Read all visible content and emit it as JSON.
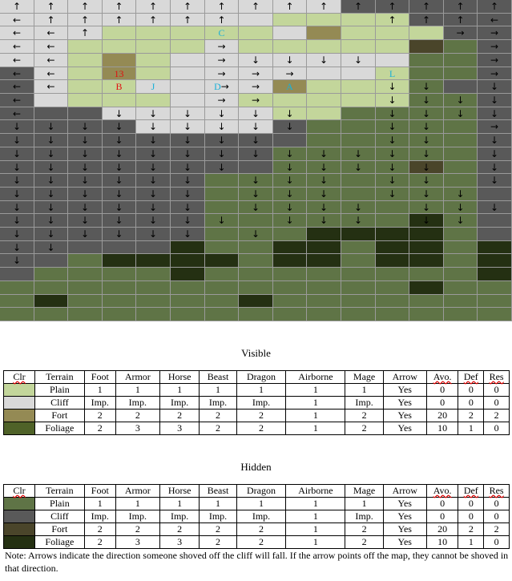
{
  "legend_titles": {
    "visible": "Visible",
    "hidden": "Hidden"
  },
  "legend_headers": [
    "Clr",
    "Terrain",
    "Foot",
    "Armor",
    "Horse",
    "Beast",
    "Dragon",
    "Airborne",
    "Mage",
    "Arrow",
    "Avo.",
    "Def",
    "Res"
  ],
  "visible_rows": [
    {
      "terrain": "Plain",
      "color": "#c3d69b",
      "values": [
        "1",
        "1",
        "1",
        "1",
        "1",
        "1",
        "1",
        "Yes",
        "0",
        "0",
        "0"
      ]
    },
    {
      "terrain": "Cliff",
      "color": "#d9d9d9",
      "values": [
        "Imp.",
        "Imp.",
        "Imp.",
        "Imp.",
        "Imp.",
        "1",
        "Imp.",
        "Yes",
        "0",
        "0",
        "0"
      ]
    },
    {
      "terrain": "Fort",
      "color": "#948a54",
      "values": [
        "2",
        "2",
        "2",
        "2",
        "2",
        "1",
        "2",
        "Yes",
        "20",
        "2",
        "2"
      ]
    },
    {
      "terrain": "Foliage",
      "color": "#4f6228",
      "values": [
        "2",
        "3",
        "3",
        "2",
        "2",
        "1",
        "2",
        "Yes",
        "10",
        "1",
        "0"
      ]
    }
  ],
  "hidden_rows": [
    {
      "terrain": "Plain",
      "color": "#5f7446",
      "values": [
        "1",
        "1",
        "1",
        "1",
        "1",
        "1",
        "1",
        "Yes",
        "0",
        "0",
        "0"
      ]
    },
    {
      "terrain": "Cliff",
      "color": "#595959",
      "values": [
        "Imp.",
        "Imp.",
        "Imp.",
        "Imp.",
        "Imp.",
        "1",
        "Imp.",
        "Yes",
        "0",
        "0",
        "0"
      ]
    },
    {
      "terrain": "Fort",
      "color": "#4a452a",
      "values": [
        "2",
        "2",
        "2",
        "2",
        "2",
        "1",
        "2",
        "Yes",
        "20",
        "2",
        "2"
      ]
    },
    {
      "terrain": "Foliage",
      "color": "#243012",
      "values": [
        "2",
        "3",
        "3",
        "2",
        "2",
        "1",
        "2",
        "Yes",
        "10",
        "1",
        "0"
      ]
    }
  ],
  "note": "Note: Arrows indicate the direction someone shoved off the cliff will fall. If the arrow points off the map, they cannot be shoved in that direction.",
  "map": {
    "terrain_key": {
      "p": "plain",
      "c": "cliff",
      "f": "fort",
      "o": "foliage",
      "P": "hidden-plain",
      "C": "hidden-cliff",
      "F": "hidden-fort",
      "O": "hidden-foliage"
    },
    "arrow_key": {
      "u": "↑",
      "d": "↓",
      "l": "←",
      "r": "→",
      ".": ""
    },
    "terrain": [
      "ccccccccccCCCCC",
      "ccccccccppppCCC",
      "cccpppppcfpppCC",
      "ccppppcpppppFPC",
      "ccpfpcccccccPPC",
      "CcpfpccccccpPPC",
      "CcppccccfpppPCC",
      "CcpppccpppppPPC",
      "CCCcccccppPPPPC",
      "CCCCccccCPPPPPC",
      "CCCCCCCCCPPPPPC",
      "CCCCCCCCPPPPPPC",
      "CCCCCCCCPPPPFPC",
      "CCCCCCPPPPPPPPC",
      "CCCCCCPPPPPPPPC",
      "CCCCCCPPPPPPPPC",
      "CCCCCCPPPPPPOPC",
      "CCCCCCPPPOOOOPC",
      "CCCCCOPPOOPOOPO",
      "CCPOOOOPOOPOOPO",
      "CPPPPOPPPPPPPPO",
      "PPPPPPPPPPPPOPP",
      "POPPPPPOPPPPPPP",
      "PPPPPPPPPPPPPPP"
    ],
    "arrows": [
      "uuuuuuuuuuuuuuu",
      "luuuuuu....uuul",
      "llu..........rr",
      "ll....r.......r",
      "ll....rdddd...r",
      "ll....rrr.....r",
      "ll....rr...dd.d",
      "l.....rr...dddd",
      "l..dddddd..dddd",
      "ddddddddd..dd.r",
      "dddddddd...dd.d",
      "ddddddddddddd.d",
      "ddddddd.ddddd.d",
      "dddddd.ddd.dd.d",
      "dddddd.ddd.ddd.",
      "dddddd.dddd.ddd",
      "ddddddd.ddd.dd.",
      "dddddd.d.......",
      "dd.............",
      "d..............",
      "...............",
      "...............",
      "...............",
      "..............."
    ],
    "labels": [
      {
        "row": 2,
        "col": 6,
        "text": "C",
        "color": "cyan"
      },
      {
        "row": 5,
        "col": 3,
        "text": "13",
        "color": "red"
      },
      {
        "row": 6,
        "col": 3,
        "text": "B",
        "color": "red"
      },
      {
        "row": 6,
        "col": 4,
        "text": "J",
        "color": "cyan"
      },
      {
        "row": 6,
        "col": 6,
        "text": "D",
        "color": "cyan"
      },
      {
        "row": 6,
        "col": 8,
        "text": "A",
        "color": "cyan"
      },
      {
        "row": 5,
        "col": 11,
        "text": "L",
        "color": "cyan"
      }
    ]
  }
}
